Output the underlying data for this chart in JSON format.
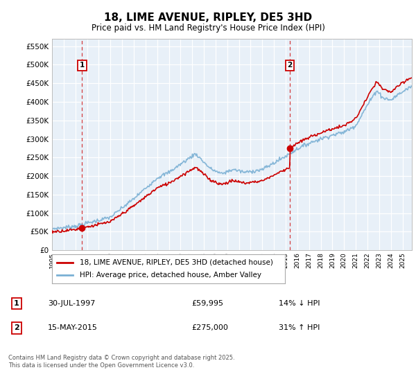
{
  "title": "18, LIME AVENUE, RIPLEY, DE5 3HD",
  "subtitle": "Price paid vs. HM Land Registry's House Price Index (HPI)",
  "legend_line1": "18, LIME AVENUE, RIPLEY, DE5 3HD (detached house)",
  "legend_line2": "HPI: Average price, detached house, Amber Valley",
  "footer": "Contains HM Land Registry data © Crown copyright and database right 2025.\nThis data is licensed under the Open Government Licence v3.0.",
  "sale1_date": "30-JUL-1997",
  "sale1_price": "£59,995",
  "sale1_hpi": "14% ↓ HPI",
  "sale2_date": "15-MAY-2015",
  "sale2_price": "£275,000",
  "sale2_hpi": "31% ↑ HPI",
  "red_color": "#cc0000",
  "blue_color": "#7ab0d4",
  "plot_bg": "#e8f0f8",
  "annotation_box_color": "#cc0000",
  "ylim": [
    0,
    570000
  ],
  "yticks": [
    0,
    50000,
    100000,
    150000,
    200000,
    250000,
    300000,
    350000,
    400000,
    450000,
    500000,
    550000
  ],
  "xlim_start": 1995.0,
  "xlim_end": 2025.8,
  "sale1_x": 1997.58,
  "sale1_y": 59995,
  "sale2_x": 2015.37,
  "sale2_y": 275000
}
